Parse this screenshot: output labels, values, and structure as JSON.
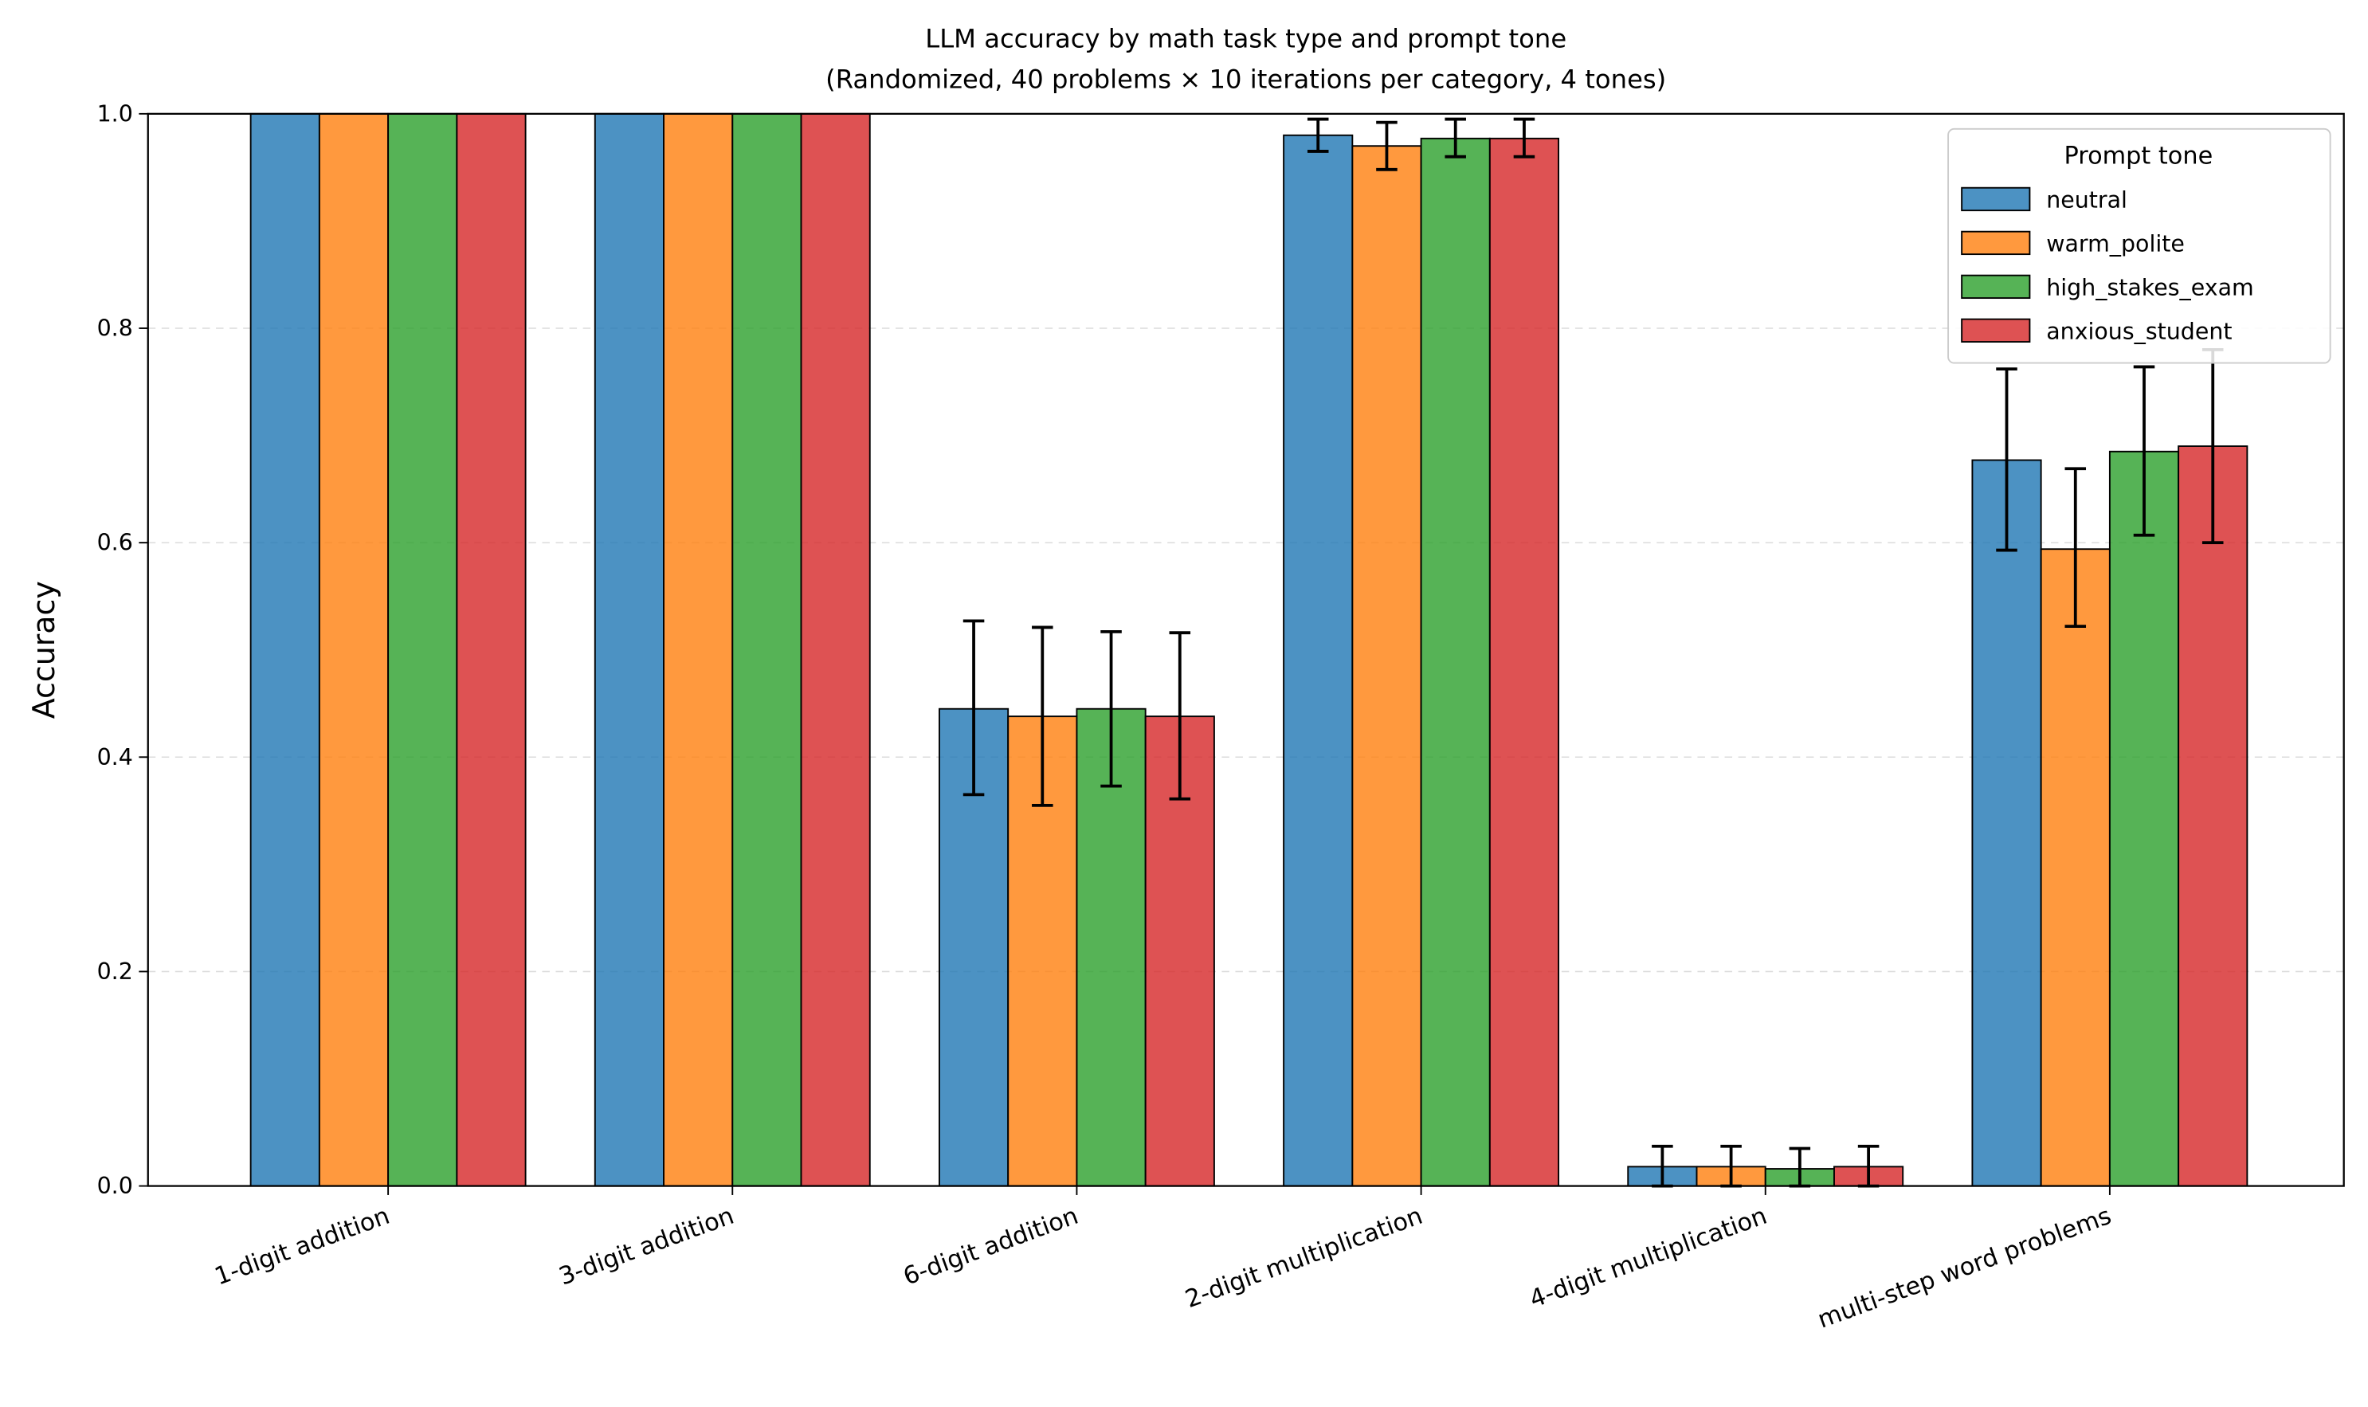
{
  "chart_data": {
    "type": "bar",
    "title": "LLM accuracy by math task type and prompt tone",
    "subtitle": "(Randomized, 40 problems × 10 iterations per category, 4 tones)",
    "xlabel": "",
    "ylabel": "Accuracy",
    "ylim": [
      0,
      1.0
    ],
    "yticks": [
      "0.0",
      "0.2",
      "0.4",
      "0.6",
      "0.8",
      "1.0"
    ],
    "grid": "y-dashed",
    "legend": {
      "title": "Prompt tone",
      "placement": "top-right"
    },
    "categories": [
      "1-digit addition",
      "3-digit addition",
      "6-digit addition",
      "2-digit multiplication",
      "4-digit multiplication",
      "multi-step word problems"
    ],
    "series": [
      {
        "name": "neutral",
        "color": "#1f77b4",
        "values": [
          1.0,
          1.0,
          0.445,
          0.98,
          0.018,
          0.677
        ],
        "err_low": [
          null,
          null,
          0.365,
          0.965,
          0.0,
          0.593
        ],
        "err_high": [
          null,
          null,
          0.527,
          0.995,
          0.037,
          0.762
        ]
      },
      {
        "name": "warm_polite",
        "color": "#ff7f0e",
        "values": [
          1.0,
          1.0,
          0.438,
          0.97,
          0.018,
          0.594
        ],
        "err_low": [
          null,
          null,
          0.355,
          0.948,
          0.0,
          0.522
        ],
        "err_high": [
          null,
          null,
          0.521,
          0.992,
          0.037,
          0.669
        ]
      },
      {
        "name": "high_stakes_exam",
        "color": "#2ca02c",
        "values": [
          1.0,
          1.0,
          0.445,
          0.977,
          0.016,
          0.685
        ],
        "err_low": [
          null,
          null,
          0.373,
          0.96,
          0.0,
          0.607
        ],
        "err_high": [
          null,
          null,
          0.517,
          0.995,
          0.035,
          0.764
        ]
      },
      {
        "name": "anxious_student",
        "color": "#d62728",
        "values": [
          1.0,
          1.0,
          0.438,
          0.977,
          0.018,
          0.69
        ],
        "err_low": [
          null,
          null,
          0.361,
          0.96,
          0.0,
          0.6
        ],
        "err_high": [
          null,
          null,
          0.516,
          0.995,
          0.037,
          0.78
        ]
      }
    ]
  }
}
